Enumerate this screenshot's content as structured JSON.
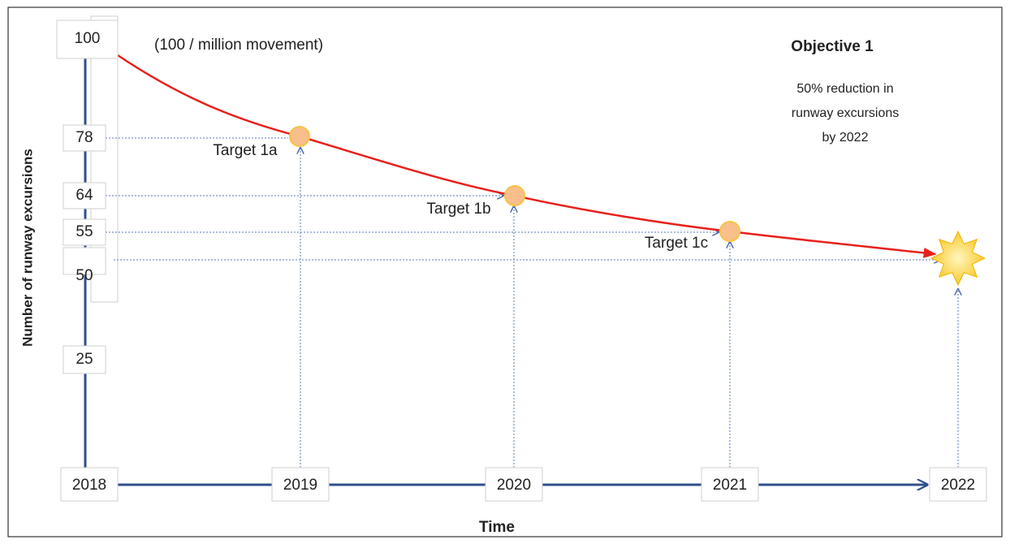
{
  "y_axis": {
    "title": "Number of runway excursions",
    "unit_note": "(100 / million movement)",
    "labels": [
      "100",
      "78",
      "64",
      "55",
      "50",
      "25"
    ]
  },
  "x_axis": {
    "title": "Time",
    "labels": [
      "2018",
      "2019",
      "2020",
      "2021",
      "2022"
    ]
  },
  "targets": [
    "Target 1a",
    "Target 1b",
    "Target 1c"
  ],
  "objective": {
    "title": "Objective 1",
    "lines": [
      "50% reduction in",
      "runway excursions",
      "by 2022"
    ]
  }
}
